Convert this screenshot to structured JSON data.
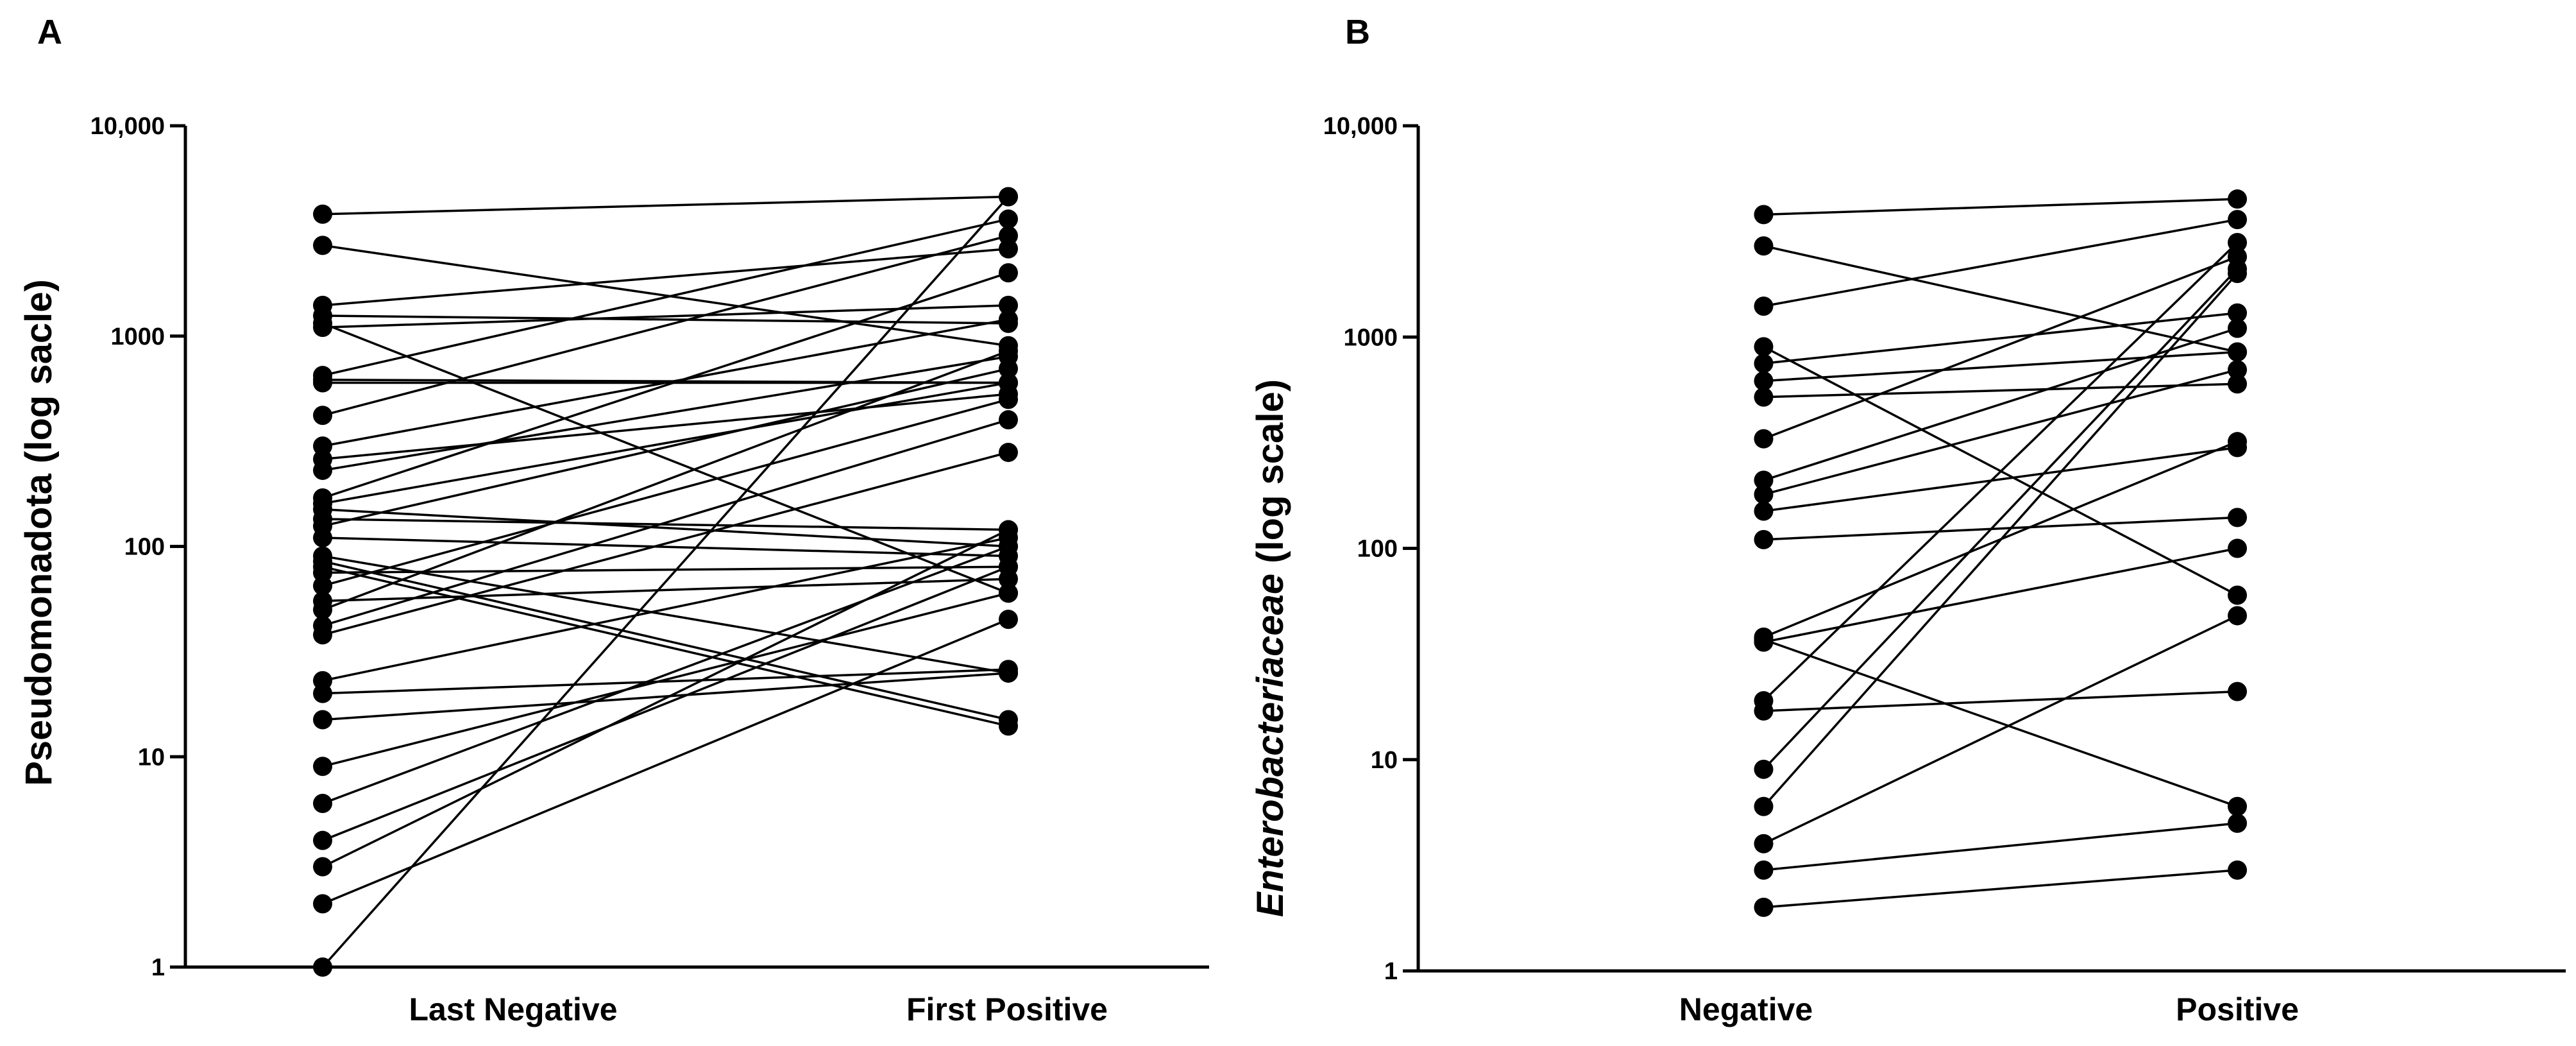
{
  "chart_data": [
    {
      "type": "scatter",
      "panel_label": "A",
      "title": "",
      "xlabel": "",
      "ylabel": "Pseudomonadota (log sacle)",
      "ylabel_italic": false,
      "yscale": "log",
      "ylim": [
        1,
        10000
      ],
      "y_ticks": [
        1,
        10,
        100,
        1000,
        10000
      ],
      "y_tick_labels": [
        "1",
        "10",
        "100",
        "1000",
        "10,000"
      ],
      "categories": [
        "Last Negative",
        "First Positive"
      ],
      "pairs": [
        [
          3800,
          4600
        ],
        [
          2700,
          900
        ],
        [
          1400,
          2600
        ],
        [
          1250,
          1150
        ],
        [
          1150,
          60
        ],
        [
          1100,
          1400
        ],
        [
          650,
          3600
        ],
        [
          620,
          600
        ],
        [
          600,
          600
        ],
        [
          420,
          3000
        ],
        [
          300,
          1200
        ],
        [
          260,
          530
        ],
        [
          230,
          800
        ],
        [
          170,
          2000
        ],
        [
          160,
          600
        ],
        [
          150,
          100
        ],
        [
          135,
          120
        ],
        [
          125,
          700
        ],
        [
          110,
          90
        ],
        [
          90,
          25
        ],
        [
          85,
          15
        ],
        [
          80,
          14
        ],
        [
          75,
          80
        ],
        [
          65,
          500
        ],
        [
          55,
          70
        ],
        [
          50,
          850
        ],
        [
          42,
          400
        ],
        [
          38,
          280
        ],
        [
          23,
          110
        ],
        [
          20,
          26
        ],
        [
          15,
          25
        ],
        [
          9,
          60
        ],
        [
          6,
          100
        ],
        [
          4,
          80
        ],
        [
          3,
          120
        ],
        [
          2,
          45
        ],
        [
          1,
          4600
        ]
      ]
    },
    {
      "type": "scatter",
      "panel_label": "B",
      "title": "",
      "xlabel": "",
      "ylabel": "Enterobacteriaceae (log scale)",
      "ylabel_parts": {
        "italic": "Enterobacteriaceae",
        "plain": " (log scale)"
      },
      "ylabel_italic": true,
      "yscale": "log",
      "ylim": [
        1,
        10000
      ],
      "y_ticks": [
        1,
        10,
        100,
        1000,
        10000
      ],
      "y_tick_labels": [
        "1",
        "10",
        "100",
        "1000",
        "10,000"
      ],
      "categories": [
        "Negative",
        "Positive"
      ],
      "pairs": [
        [
          3800,
          4500
        ],
        [
          2700,
          850
        ],
        [
          1400,
          3600
        ],
        [
          900,
          60
        ],
        [
          750,
          1300
        ],
        [
          620,
          850
        ],
        [
          520,
          600
        ],
        [
          330,
          2400
        ],
        [
          210,
          1100
        ],
        [
          180,
          700
        ],
        [
          150,
          300
        ],
        [
          110,
          140
        ],
        [
          38,
          320
        ],
        [
          37,
          6
        ],
        [
          36,
          100
        ],
        [
          19,
          2800
        ],
        [
          17,
          21
        ],
        [
          9,
          2100
        ],
        [
          6,
          2000
        ],
        [
          4,
          48
        ],
        [
          3,
          5
        ],
        [
          2,
          3
        ]
      ]
    }
  ]
}
